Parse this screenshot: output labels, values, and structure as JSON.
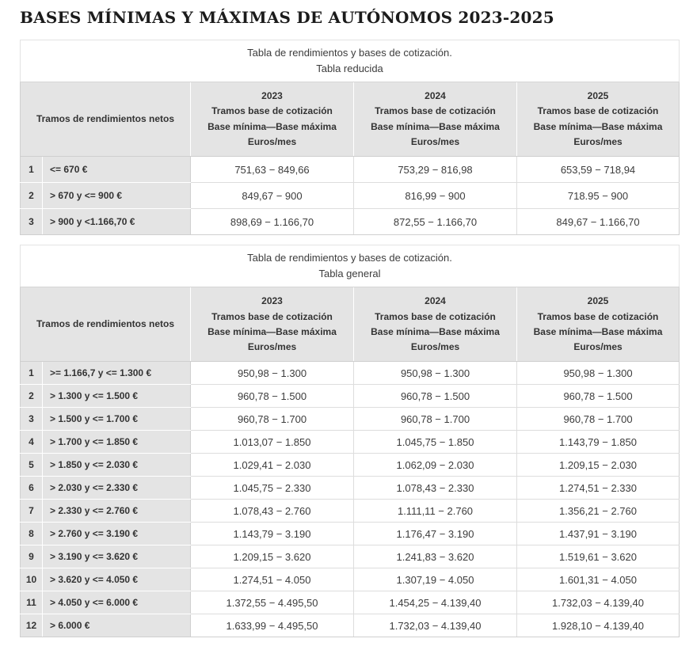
{
  "page": {
    "title": "BASES MÍNIMAS Y MÁXIMAS DE AUTÓNOMOS 2023-2025"
  },
  "colors": {
    "header_bg": "#e4e4e4",
    "label_cell_bg": "#e4e4e4",
    "value_cell_bg": "#ffffff",
    "border": "#cfcfcf",
    "text": "#3c3c3c"
  },
  "tables": [
    {
      "caption": [
        "Tabla de rendimientos y bases de cotización.",
        "Tabla reducida"
      ],
      "header": {
        "tramos_label": "Tramos de rendimientos netos",
        "years": [
          {
            "year": "2023",
            "l2": "Tramos base de cotización",
            "l3": "Base mínima—Base máxima",
            "l4": "Euros/mes"
          },
          {
            "year": "2024",
            "l2": "Tramos base de cotización",
            "l3": "Base mínima—Base máxima",
            "l4": "Euros/mes"
          },
          {
            "year": "2025",
            "l2": "Tramos base de cotización",
            "l3": "Base mínima—Base máxima",
            "l4": "Euros/mes"
          }
        ]
      },
      "rows": [
        {
          "num": "1",
          "tramo": "<= 670 €",
          "y2023": "751,63 − 849,66",
          "y2024": "753,29 − 816,98",
          "y2025": "653,59 − 718,94"
        },
        {
          "num": "2",
          "tramo": "> 670 y <= 900 €",
          "y2023": "849,67 − 900",
          "y2024": "816,99 − 900",
          "y2025": "718.95 − 900"
        },
        {
          "num": "3",
          "tramo": "> 900 y <1.166,70 €",
          "y2023": "898,69 − 1.166,70",
          "y2024": "872,55 − 1.166,70",
          "y2025": "849,67 − 1.166,70"
        }
      ]
    },
    {
      "caption": [
        "Tabla de rendimientos y bases de cotización.",
        "Tabla general"
      ],
      "header": {
        "tramos_label": "Tramos de rendimientos netos",
        "years": [
          {
            "year": "2023",
            "l2": "Tramos base de cotización",
            "l3": "Base mínima—Base máxima",
            "l4": "Euros/mes"
          },
          {
            "year": "2024",
            "l2": "Tramos base de cotización",
            "l3": "Base mínima—Base máxima",
            "l4": "Euros/mes"
          },
          {
            "year": "2025",
            "l2": "Tramos base de cotización",
            "l3": "Base mínima—Base máxima",
            "l4": "Euros/mes"
          }
        ]
      },
      "rows": [
        {
          "num": "1",
          "tramo": ">= 1.166,7 y <= 1.300 €",
          "y2023": "950,98 − 1.300",
          "y2024": "950,98 − 1.300",
          "y2025": "950,98 − 1.300"
        },
        {
          "num": "2",
          "tramo": "> 1.300 y <= 1.500 €",
          "y2023": "960,78 − 1.500",
          "y2024": "960,78 − 1.500",
          "y2025": "960,78 − 1.500"
        },
        {
          "num": "3",
          "tramo": "> 1.500 y <= 1.700 €",
          "y2023": "960,78 − 1.700",
          "y2024": "960,78 − 1.700",
          "y2025": "960,78 − 1.700"
        },
        {
          "num": "4",
          "tramo": "> 1.700 y <= 1.850 €",
          "y2023": "1.013,07 − 1.850",
          "y2024": "1.045,75 − 1.850",
          "y2025": "1.143,79 − 1.850"
        },
        {
          "num": "5",
          "tramo": "> 1.850 y <= 2.030 €",
          "y2023": "1.029,41 − 2.030",
          "y2024": "1.062,09 − 2.030",
          "y2025": "1.209,15 − 2.030"
        },
        {
          "num": "6",
          "tramo": "> 2.030 y <= 2.330 €",
          "y2023": "1.045,75 − 2.330",
          "y2024": "1.078,43 − 2.330",
          "y2025": "1.274,51 − 2.330"
        },
        {
          "num": "7",
          "tramo": "> 2.330 y <= 2.760 €",
          "y2023": "1.078,43 − 2.760",
          "y2024": "1.111,11 − 2.760",
          "y2025": "1.356,21 − 2.760"
        },
        {
          "num": "8",
          "tramo": "> 2.760 y <= 3.190 €",
          "y2023": "1.143,79 − 3.190",
          "y2024": "1.176,47 − 3.190",
          "y2025": "1.437,91 − 3.190"
        },
        {
          "num": "9",
          "tramo": "> 3.190 y <= 3.620 €",
          "y2023": "1.209,15 − 3.620",
          "y2024": "1.241,83 − 3.620",
          "y2025": "1.519,61 − 3.620"
        },
        {
          "num": "10",
          "tramo": "> 3.620 y <= 4.050 €",
          "y2023": "1.274,51 − 4.050",
          "y2024": "1.307,19 − 4.050",
          "y2025": "1.601,31 − 4.050"
        },
        {
          "num": "11",
          "tramo": "> 4.050 y <= 6.000 €",
          "y2023": "1.372,55 − 4.495,50",
          "y2024": "1.454,25 − 4.139,40",
          "y2025": "1.732,03 − 4.139,40"
        },
        {
          "num": "12",
          "tramo": "> 6.000 €",
          "y2023": "1.633,99 − 4.495,50",
          "y2024": "1.732,03 − 4.139,40",
          "y2025": "1.928,10 − 4.139,40"
        }
      ]
    }
  ]
}
